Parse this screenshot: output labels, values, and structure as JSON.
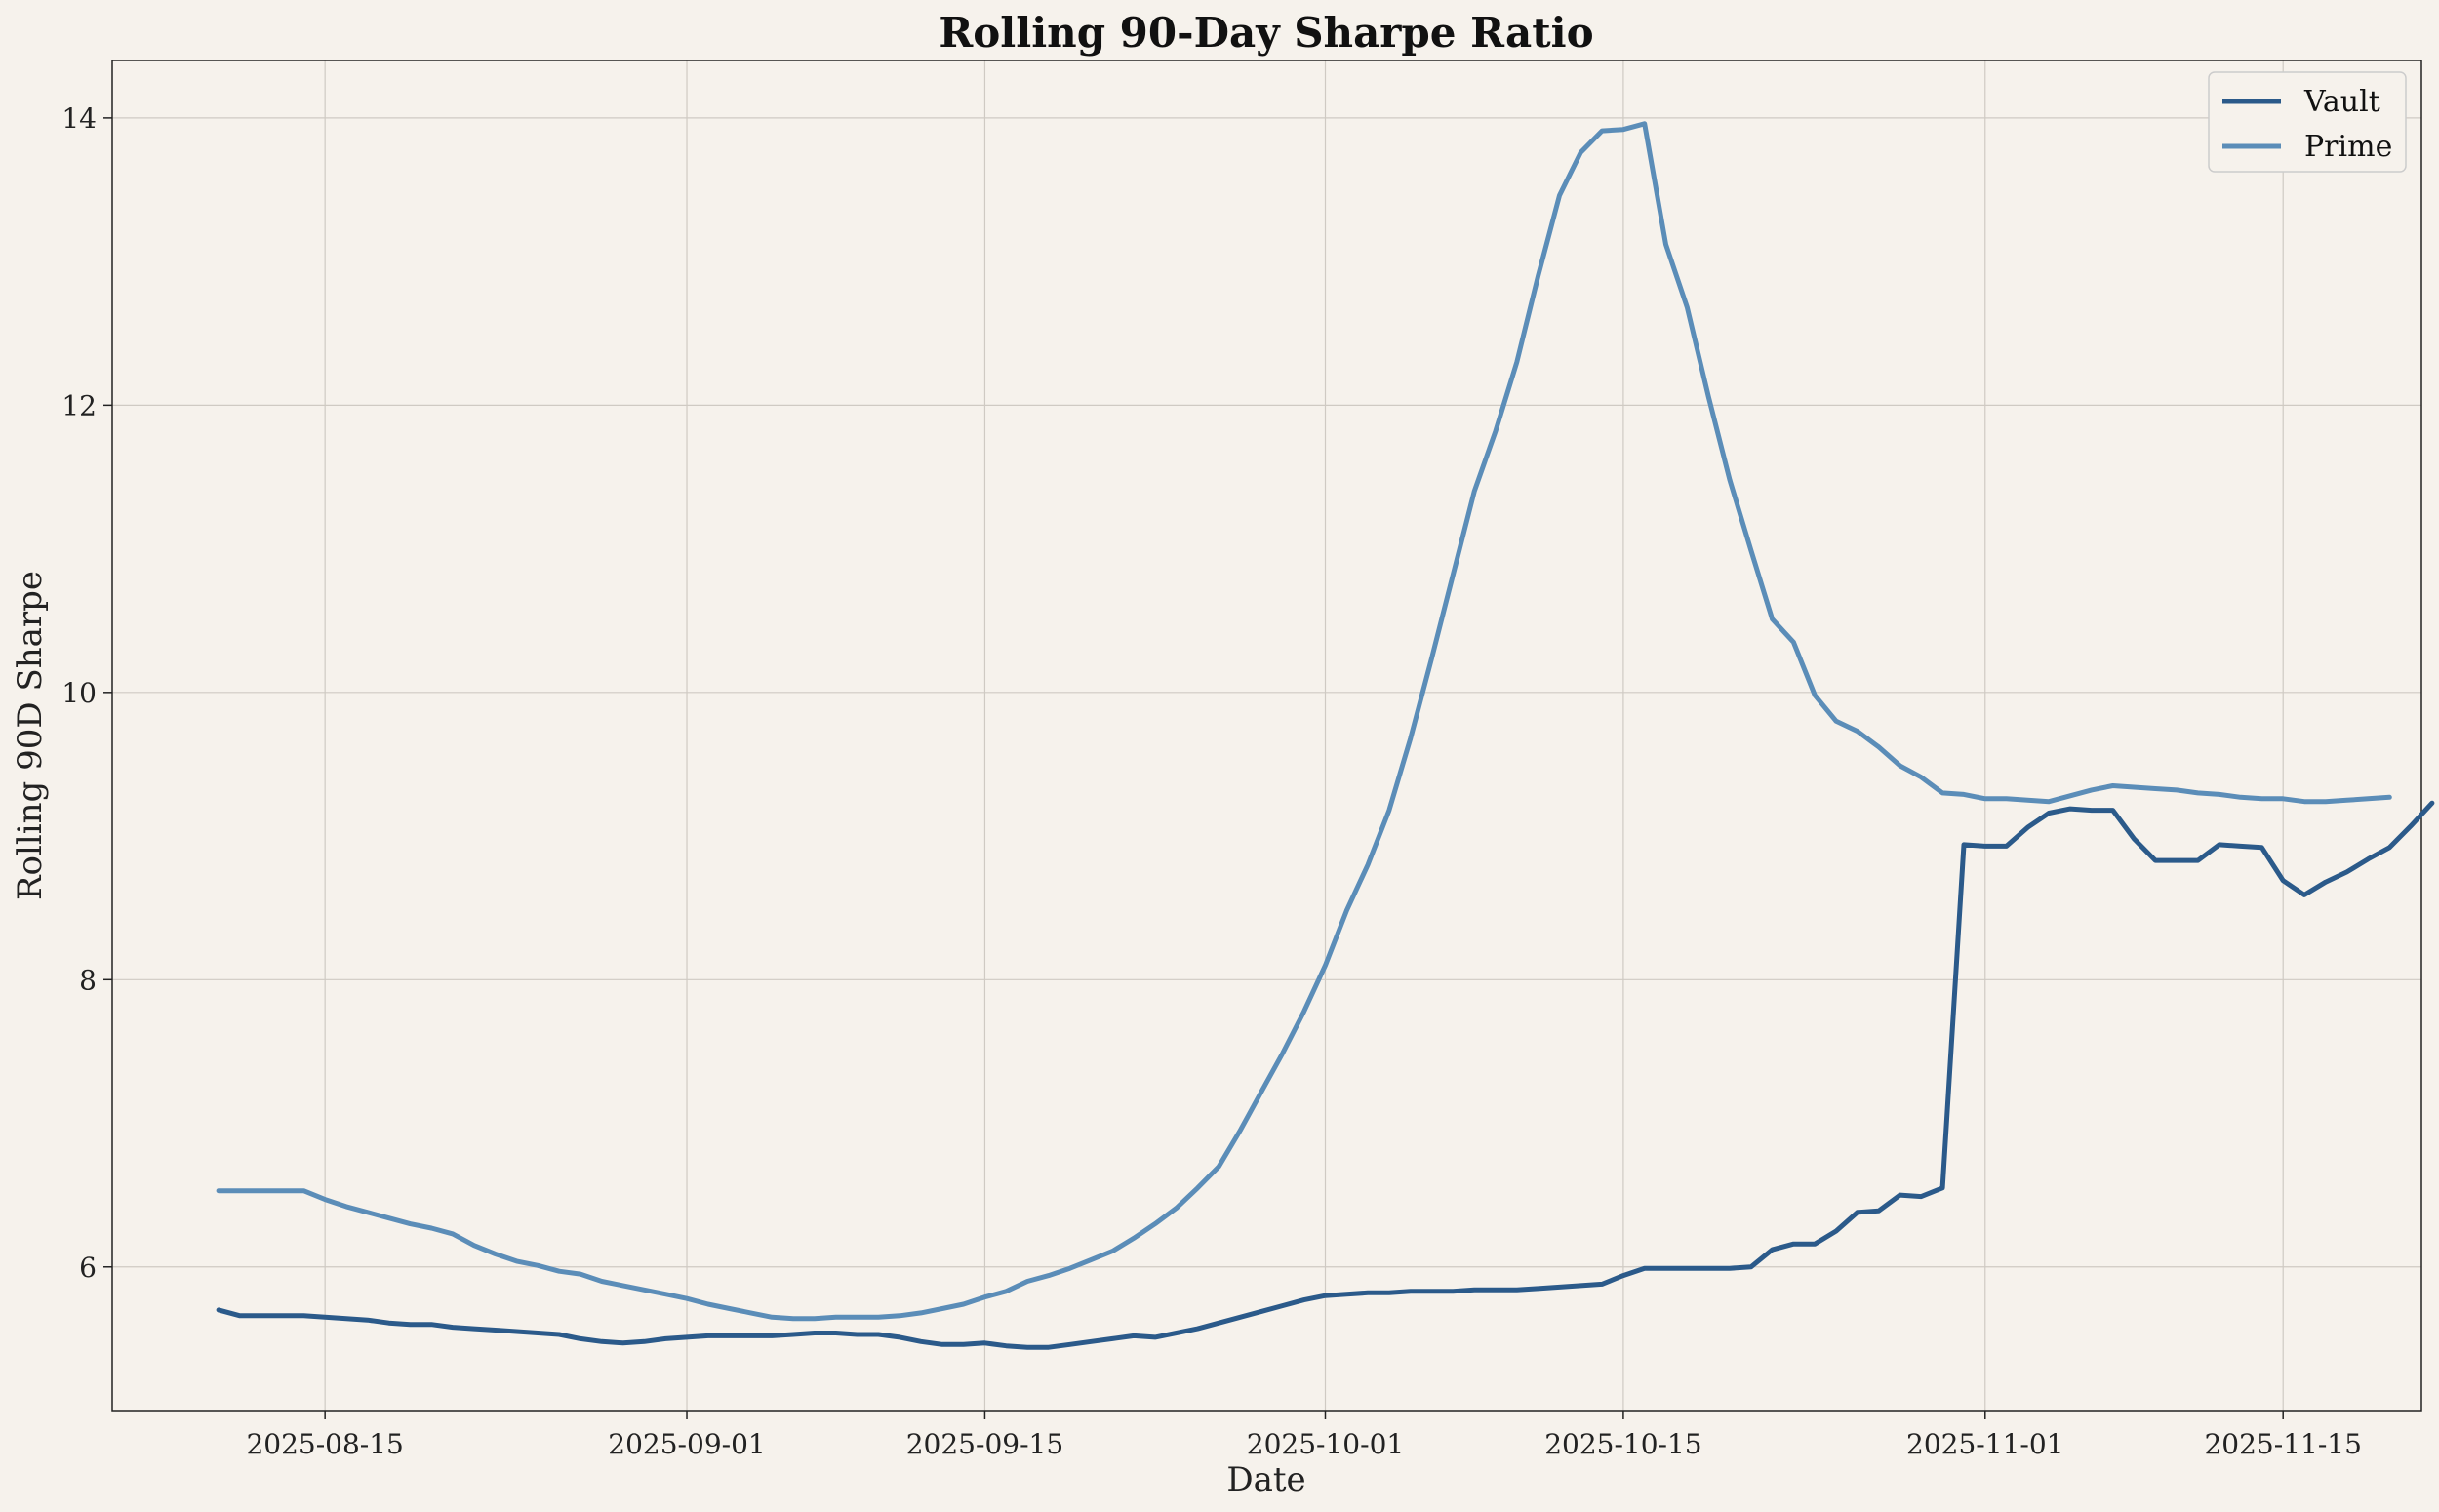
{
  "chart_data": {
    "type": "line",
    "title": "Rolling 90-Day Sharpe Ratio",
    "xlabel": "Date",
    "ylabel": "Rolling 90D Sharpe",
    "x_start": "2025-08-10",
    "x_step_days": 1,
    "xlim_days": [
      -5,
      103.5
    ],
    "ylim": [
      5.0,
      14.4
    ],
    "yticks": [
      6,
      8,
      10,
      12,
      14
    ],
    "xticks": [
      {
        "day": 5,
        "label": "2025-08-15"
      },
      {
        "day": 22,
        "label": "2025-09-01"
      },
      {
        "day": 36,
        "label": "2025-09-15"
      },
      {
        "day": 52,
        "label": "2025-10-01"
      },
      {
        "day": 66,
        "label": "2025-10-15"
      },
      {
        "day": 83,
        "label": "2025-11-01"
      },
      {
        "day": 97,
        "label": "2025-11-15"
      }
    ],
    "grid": true,
    "legend_position": "top-right",
    "series": [
      {
        "name": "Vault",
        "color": "#2b5a8a",
        "values": [
          5.7,
          5.66,
          5.66,
          5.66,
          5.66,
          5.65,
          5.64,
          5.63,
          5.61,
          5.6,
          5.6,
          5.58,
          5.57,
          5.56,
          5.55,
          5.54,
          5.53,
          5.5,
          5.48,
          5.47,
          5.48,
          5.5,
          5.51,
          5.52,
          5.52,
          5.52,
          5.52,
          5.53,
          5.54,
          5.54,
          5.53,
          5.53,
          5.51,
          5.48,
          5.46,
          5.46,
          5.47,
          5.45,
          5.44,
          5.44,
          5.46,
          5.48,
          5.5,
          5.52,
          5.51,
          5.54,
          5.57,
          5.61,
          5.65,
          5.69,
          5.73,
          5.77,
          5.8,
          5.81,
          5.82,
          5.82,
          5.83,
          5.83,
          5.83,
          5.84,
          5.84,
          5.84,
          5.85,
          5.86,
          5.87,
          5.88,
          5.94,
          5.99,
          5.99,
          5.99,
          5.99,
          5.99,
          6.0,
          6.12,
          6.16,
          6.16,
          6.25,
          6.38,
          6.39,
          6.5,
          6.49,
          6.55,
          8.94,
          8.93,
          8.93,
          9.06,
          9.16,
          9.19,
          9.18,
          9.18,
          8.98,
          8.83,
          8.83,
          8.83,
          8.94,
          8.93,
          8.92,
          8.69,
          8.59,
          8.68,
          8.75,
          8.84,
          8.92,
          9.07,
          9.23
        ]
      },
      {
        "name": "Prime",
        "color": "#5b8db8",
        "values": [
          6.53,
          6.53,
          6.53,
          6.53,
          6.53,
          6.47,
          6.42,
          6.38,
          6.34,
          6.3,
          6.27,
          6.23,
          6.15,
          6.09,
          6.04,
          6.01,
          5.97,
          5.95,
          5.9,
          5.87,
          5.84,
          5.81,
          5.78,
          5.74,
          5.71,
          5.68,
          5.65,
          5.64,
          5.64,
          5.65,
          5.65,
          5.65,
          5.66,
          5.68,
          5.71,
          5.74,
          5.79,
          5.83,
          5.9,
          5.94,
          5.99,
          6.05,
          6.11,
          6.2,
          6.3,
          6.41,
          6.55,
          6.7,
          6.95,
          7.22,
          7.49,
          7.78,
          8.1,
          8.48,
          8.8,
          9.18,
          9.68,
          10.24,
          10.82,
          11.4,
          11.82,
          12.3,
          12.9,
          13.46,
          13.76,
          13.91,
          13.92,
          13.96,
          13.12,
          12.68,
          12.06,
          11.48,
          10.99,
          10.51,
          10.35,
          9.98,
          9.8,
          9.73,
          9.62,
          9.49,
          9.41,
          9.3,
          9.29,
          9.26,
          9.26,
          9.25,
          9.24,
          9.28,
          9.32,
          9.35,
          9.34,
          9.33,
          9.32,
          9.3,
          9.29,
          9.27,
          9.26,
          9.26,
          9.24,
          9.24,
          9.25,
          9.26,
          9.27
        ]
      }
    ]
  }
}
